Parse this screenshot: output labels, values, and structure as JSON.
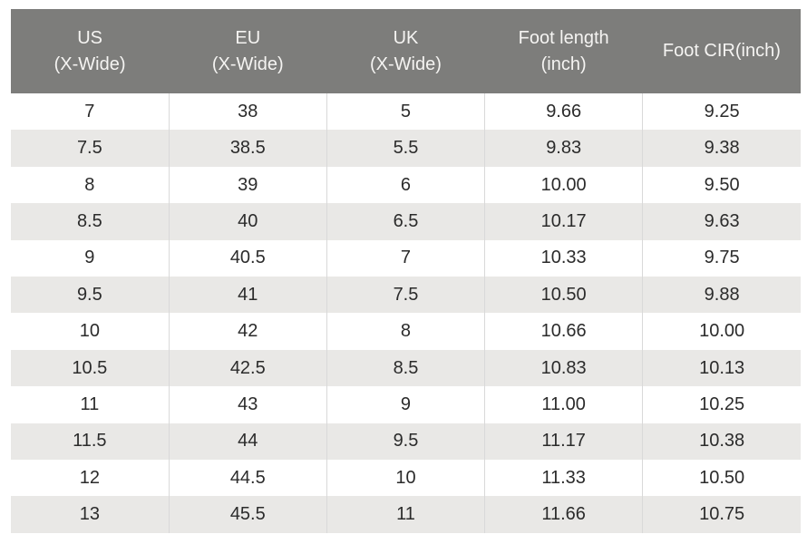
{
  "colors": {
    "header_bg": "#7d7d7b",
    "header_text": "#f5f4f2",
    "row_bg": "#ffffff",
    "row_alt_bg": "#e9e8e6",
    "cell_border": "#d9d9d9",
    "body_text": "#2b2b2b",
    "page_bg": "#ffffff"
  },
  "chart_data": {
    "type": "table",
    "columns": [
      {
        "id": "us",
        "lines": [
          "US",
          "(X-Wide)"
        ]
      },
      {
        "id": "eu",
        "lines": [
          "EU",
          "(X-Wide)"
        ]
      },
      {
        "id": "uk",
        "lines": [
          "UK",
          "(X-Wide)"
        ]
      },
      {
        "id": "foot-length",
        "lines": [
          "Foot length",
          "(inch)"
        ]
      },
      {
        "id": "foot-cir",
        "lines": [
          "Foot CIR(inch)"
        ]
      }
    ],
    "rows": [
      [
        "7",
        "38",
        "5",
        "9.66",
        "9.25"
      ],
      [
        "7.5",
        "38.5",
        "5.5",
        "9.83",
        "9.38"
      ],
      [
        "8",
        "39",
        "6",
        "10.00",
        "9.50"
      ],
      [
        "8.5",
        "40",
        "6.5",
        "10.17",
        "9.63"
      ],
      [
        "9",
        "40.5",
        "7",
        "10.33",
        "9.75"
      ],
      [
        "9.5",
        "41",
        "7.5",
        "10.50",
        "9.88"
      ],
      [
        "10",
        "42",
        "8",
        "10.66",
        "10.00"
      ],
      [
        "10.5",
        "42.5",
        "8.5",
        "10.83",
        "10.13"
      ],
      [
        "11",
        "43",
        "9",
        "11.00",
        "10.25"
      ],
      [
        "11.5",
        "44",
        "9.5",
        "11.17",
        "10.38"
      ],
      [
        "12",
        "44.5",
        "10",
        "11.33",
        "10.50"
      ],
      [
        "13",
        "45.5",
        "11",
        "11.66",
        "10.75"
      ]
    ]
  }
}
